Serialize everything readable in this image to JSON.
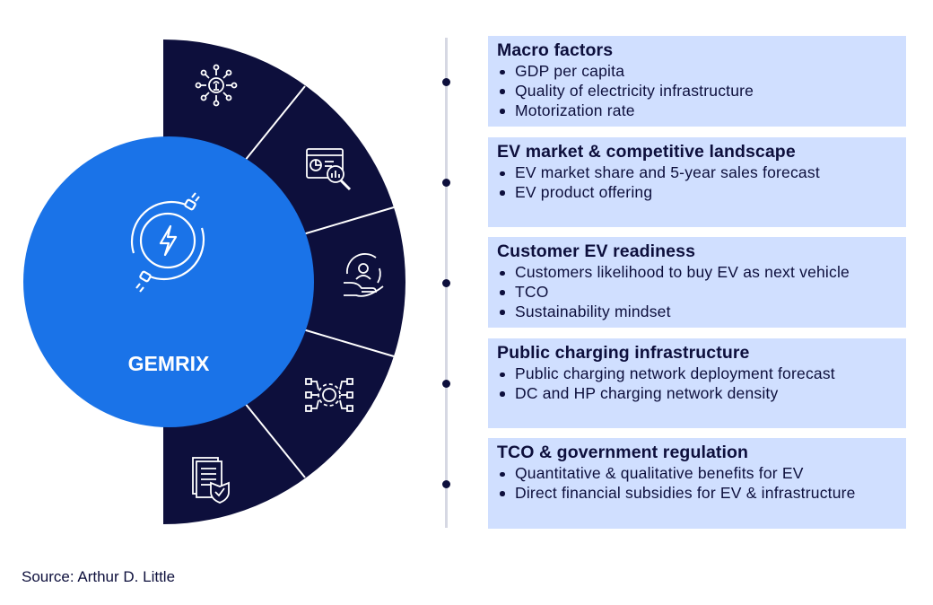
{
  "hub": {
    "label": "GEMRIX",
    "icon": "ev-charging-icon"
  },
  "segments": [
    {
      "icon": "lightbulb-network-icon"
    },
    {
      "icon": "market-analysis-icon"
    },
    {
      "icon": "customer-hand-icon"
    },
    {
      "icon": "charging-network-icon"
    },
    {
      "icon": "document-shield-icon"
    }
  ],
  "categories": [
    {
      "title": "Macro factors",
      "items": [
        "GDP per capita",
        "Quality of electricity infrastructure",
        "Motorization rate"
      ]
    },
    {
      "title": "EV market & competitive landscape",
      "items": [
        "EV market share and 5-year sales forecast",
        "EV product offering"
      ]
    },
    {
      "title": "Customer EV readiness",
      "items": [
        "Customers likelihood to buy EV as next vehicle",
        "TCO",
        "Sustainability mindset"
      ]
    },
    {
      "title": "Public charging infrastructure",
      "items": [
        "Public charging network deployment forecast",
        "DC and HP charging network density"
      ]
    },
    {
      "title": "TCO & government regulation",
      "items": [
        "Quantitative & qualitative benefits for EV",
        "Direct financial subsidies for EV & infrastructure"
      ]
    }
  ],
  "source": "Source: Arthur D. Little",
  "colors": {
    "navy": "#0d0f3c",
    "blue": "#1a73e8",
    "box": "#d0dfff",
    "line": "#d6d8e3"
  }
}
